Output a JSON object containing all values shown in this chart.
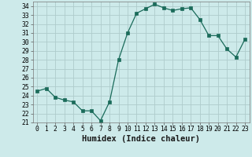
{
  "x": [
    0,
    1,
    2,
    3,
    4,
    5,
    6,
    7,
    8,
    9,
    10,
    11,
    12,
    13,
    14,
    15,
    16,
    17,
    18,
    19,
    20,
    21,
    22,
    23
  ],
  "y": [
    24.5,
    24.8,
    23.8,
    23.5,
    23.3,
    22.3,
    22.3,
    21.2,
    23.3,
    28.0,
    31.0,
    33.2,
    33.7,
    34.2,
    33.8,
    33.5,
    33.7,
    33.8,
    32.5,
    30.7,
    30.7,
    29.2,
    28.3,
    30.3
  ],
  "line_color": "#1a6b5a",
  "marker": "s",
  "marker_size": 2.2,
  "bg_color": "#cdeaea",
  "grid_color": "#aecccc",
  "xlabel": "Humidex (Indice chaleur)",
  "ylim": [
    21,
    34.5
  ],
  "xlim": [
    -0.5,
    23.5
  ],
  "yticks": [
    21,
    22,
    23,
    24,
    25,
    26,
    27,
    28,
    29,
    30,
    31,
    32,
    33,
    34
  ],
  "xticks": [
    0,
    1,
    2,
    3,
    4,
    5,
    6,
    7,
    8,
    9,
    10,
    11,
    12,
    13,
    14,
    15,
    16,
    17,
    18,
    19,
    20,
    21,
    22,
    23
  ],
  "tick_labelsize": 5.8,
  "xlabel_fontsize": 7.5
}
